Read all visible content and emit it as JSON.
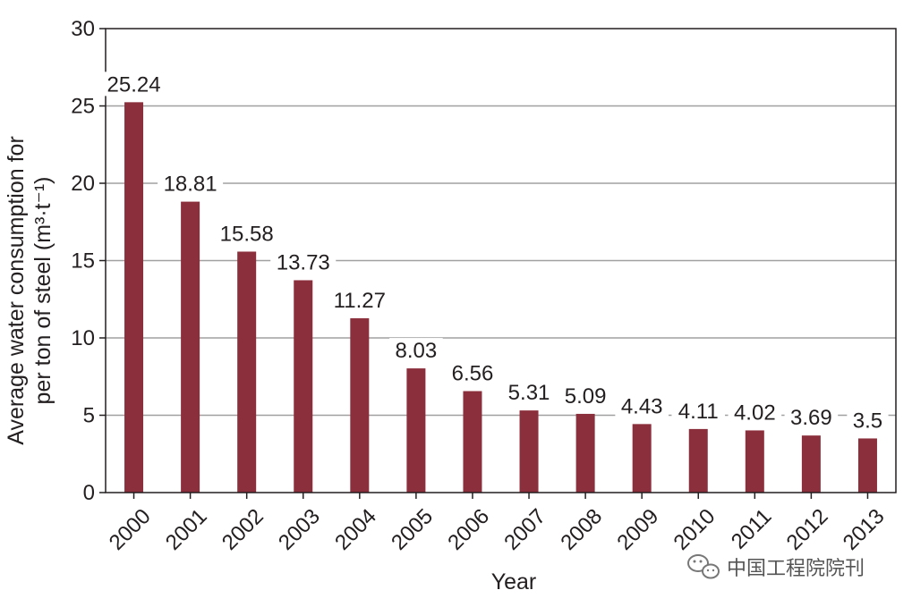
{
  "chart_data": {
    "type": "bar",
    "categories": [
      "2000",
      "2001",
      "2002",
      "2003",
      "2004",
      "2005",
      "2006",
      "2007",
      "2008",
      "2009",
      "2010",
      "2011",
      "2012",
      "2013"
    ],
    "values": [
      25.24,
      18.81,
      15.58,
      13.73,
      11.27,
      8.03,
      6.56,
      5.31,
      5.09,
      4.43,
      4.11,
      4.02,
      3.69,
      3.5
    ],
    "value_labels": [
      "25.24",
      "18.81",
      "15.58",
      "13.73",
      "11.27",
      "8.03",
      "6.56",
      "5.31",
      "5.09",
      "4.43",
      "4.11",
      "4.02",
      "3.69",
      "3.5"
    ],
    "xlabel": "Year",
    "ylabel_line1": "Average water consumption for",
    "ylabel_line2": "per ton of steel (m³·t⁻¹)",
    "ylim": [
      0,
      30
    ],
    "yticks": [
      "0",
      "5",
      "10",
      "15",
      "20",
      "25",
      "30"
    ],
    "grid": true,
    "bar_color": "#8b2f3c",
    "grid_color": "#a0a0a0"
  },
  "watermark": {
    "text": "中国工程院院刊",
    "icon": "wechat-icon"
  }
}
